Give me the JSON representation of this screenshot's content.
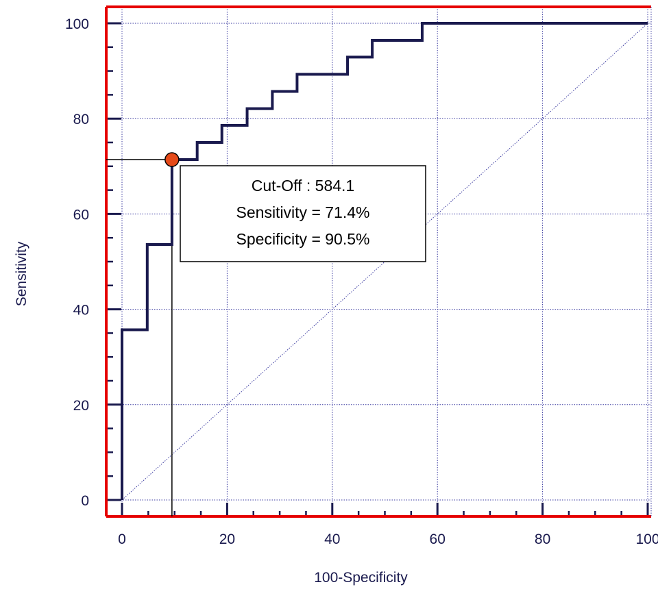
{
  "chart_data": {
    "type": "line",
    "xlabel": "100-Specificity",
    "ylabel": "Sensitivity",
    "xlim": [
      0,
      100
    ],
    "ylim": [
      0,
      100
    ],
    "x_ticks": [
      0,
      20,
      40,
      60,
      80,
      100
    ],
    "y_ticks": [
      0,
      20,
      40,
      60,
      80,
      100
    ],
    "grid": true,
    "series": [
      {
        "values_x": [
          0,
          0,
          4.8,
          4.8,
          9.5,
          9.5,
          14.3,
          14.3,
          19.0,
          19.0,
          23.8,
          23.8,
          28.6,
          28.6,
          33.3,
          33.3,
          42.9,
          42.9,
          47.6,
          47.6,
          57.1,
          57.1,
          100
        ],
        "values_y": [
          0,
          35.7,
          35.7,
          53.6,
          53.6,
          71.4,
          71.4,
          75.0,
          75.0,
          78.6,
          78.6,
          82.1,
          82.1,
          85.7,
          85.7,
          89.3,
          89.3,
          92.9,
          92.9,
          96.4,
          96.4,
          100,
          100
        ]
      }
    ],
    "reference_line": {
      "x": [
        0,
        100
      ],
      "y": [
        0,
        100
      ]
    },
    "cutoff_point": {
      "x": 9.5,
      "y": 71.4
    },
    "annotation": [
      "Cut-Off : 584.1",
      "Sensitivity = 71.4%",
      "Specificity = 90.5%"
    ],
    "colors": {
      "curve": "#1a1a4e",
      "frame": "#e60000",
      "point": "#e64a19",
      "grid": "#3a3aa0",
      "text": "#1a1a4e"
    }
  }
}
